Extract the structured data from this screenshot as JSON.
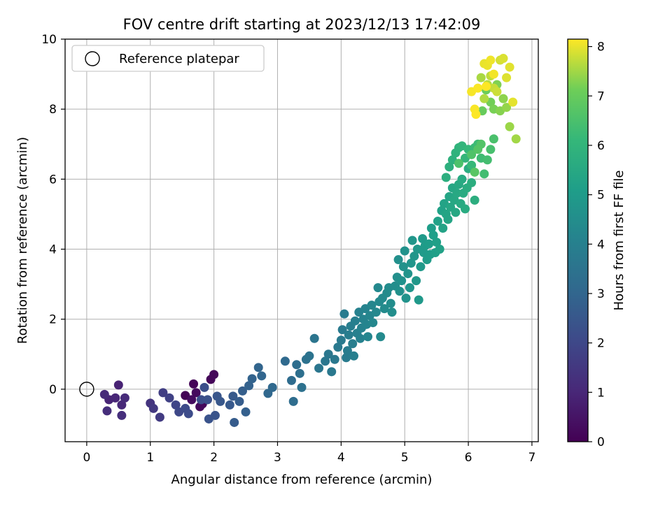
{
  "chart_data": {
    "type": "scatter",
    "title": "FOV centre drift starting at 2023/12/13 17:42:09",
    "xlabel": "Angular distance from reference (arcmin)",
    "ylabel": "Rotation from reference (arcmin)",
    "xlim": [
      -0.34,
      7.1
    ],
    "ylim": [
      -1.5,
      10
    ],
    "xticks": [
      "0",
      "1",
      "2",
      "3",
      "4",
      "5",
      "6",
      "7"
    ],
    "yticks": [
      "0",
      "2",
      "4",
      "6",
      "8",
      "10"
    ],
    "grid": true,
    "legend": {
      "placement": "top-left",
      "label": "Reference platepar"
    },
    "reference_point": {
      "x": 0,
      "y": 0
    },
    "colorbar": {
      "label": "Hours from first FF file",
      "min": 0,
      "max": 8.15,
      "ticks": [
        "0",
        "1",
        "2",
        "3",
        "4",
        "5",
        "6",
        "7",
        "8"
      ],
      "colormap": "viridis"
    },
    "points": [
      [
        1.55,
        -0.18,
        0.05
      ],
      [
        1.68,
        0.15,
        0.08
      ],
      [
        1.82,
        -0.42,
        0.12
      ],
      [
        1.95,
        0.28,
        0.15
      ],
      [
        2.0,
        0.42,
        0.18
      ],
      [
        1.78,
        -0.5,
        0.22
      ],
      [
        1.72,
        -0.1,
        0.25
      ],
      [
        1.65,
        -0.3,
        0.3
      ],
      [
        0.5,
        0.12,
        0.9
      ],
      [
        0.35,
        -0.3,
        0.95
      ],
      [
        0.45,
        -0.25,
        1.0
      ],
      [
        0.55,
        -0.45,
        1.05
      ],
      [
        0.28,
        -0.15,
        1.1
      ],
      [
        0.6,
        -0.25,
        1.15
      ],
      [
        0.32,
        -0.62,
        1.2
      ],
      [
        0.55,
        -0.75,
        1.25
      ],
      [
        1.0,
        -0.4,
        1.4
      ],
      [
        1.05,
        -0.55,
        1.5
      ],
      [
        1.15,
        -0.8,
        1.6
      ],
      [
        1.2,
        -0.1,
        1.7
      ],
      [
        1.3,
        -0.25,
        1.8
      ],
      [
        1.4,
        -0.45,
        1.9
      ],
      [
        1.45,
        -0.65,
        2.0
      ],
      [
        1.55,
        -0.55,
        2.1
      ],
      [
        1.6,
        -0.7,
        2.15
      ],
      [
        1.8,
        -0.3,
        2.2
      ],
      [
        1.85,
        0.05,
        2.25
      ],
      [
        1.9,
        -0.3,
        2.3
      ],
      [
        1.92,
        -0.85,
        2.35
      ],
      [
        2.02,
        -0.75,
        2.4
      ],
      [
        2.05,
        -0.2,
        2.45
      ],
      [
        2.1,
        -0.35,
        2.5
      ],
      [
        2.25,
        -0.45,
        2.55
      ],
      [
        2.3,
        -0.2,
        2.6
      ],
      [
        2.32,
        -0.95,
        2.65
      ],
      [
        2.4,
        -0.35,
        2.7
      ],
      [
        2.45,
        -0.05,
        2.75
      ],
      [
        2.5,
        -0.65,
        2.8
      ],
      [
        2.55,
        0.1,
        2.85
      ],
      [
        2.6,
        0.3,
        2.9
      ],
      [
        2.7,
        0.62,
        2.95
      ],
      [
        2.75,
        0.38,
        3.0
      ],
      [
        2.85,
        -0.12,
        3.05
      ],
      [
        2.92,
        0.05,
        3.1
      ],
      [
        3.12,
        0.8,
        3.15
      ],
      [
        3.22,
        0.25,
        3.2
      ],
      [
        3.25,
        -0.35,
        3.25
      ],
      [
        3.3,
        0.7,
        3.3
      ],
      [
        3.35,
        0.45,
        3.35
      ],
      [
        3.38,
        0.05,
        3.4
      ],
      [
        3.45,
        0.85,
        3.45
      ],
      [
        3.5,
        0.95,
        3.5
      ],
      [
        3.58,
        1.45,
        3.55
      ],
      [
        3.65,
        0.6,
        3.6
      ],
      [
        3.75,
        0.8,
        3.62
      ],
      [
        3.8,
        1.0,
        3.65
      ],
      [
        3.85,
        0.5,
        3.67
      ],
      [
        3.9,
        0.85,
        3.7
      ],
      [
        3.95,
        1.2,
        3.72
      ],
      [
        4.0,
        1.4,
        3.75
      ],
      [
        4.02,
        1.7,
        3.77
      ],
      [
        4.05,
        2.15,
        3.8
      ],
      [
        4.08,
        0.9,
        3.82
      ],
      [
        4.1,
        1.1,
        3.85
      ],
      [
        4.12,
        1.55,
        3.87
      ],
      [
        4.15,
        1.8,
        3.9
      ],
      [
        4.18,
        1.3,
        3.92
      ],
      [
        4.2,
        0.95,
        3.95
      ],
      [
        4.22,
        1.95,
        3.97
      ],
      [
        4.25,
        1.6,
        4.0
      ],
      [
        4.28,
        2.2,
        4.02
      ],
      [
        4.3,
        1.45,
        4.05
      ],
      [
        4.32,
        1.75,
        4.07
      ],
      [
        4.35,
        2.0,
        4.1
      ],
      [
        4.38,
        2.3,
        4.12
      ],
      [
        4.4,
        1.85,
        4.15
      ],
      [
        4.42,
        1.5,
        4.17
      ],
      [
        4.45,
        2.1,
        4.2
      ],
      [
        4.48,
        2.4,
        4.22
      ],
      [
        4.5,
        1.9,
        4.25
      ],
      [
        4.55,
        2.2,
        4.28
      ],
      [
        4.58,
        2.9,
        4.3
      ],
      [
        4.6,
        2.5,
        4.32
      ],
      [
        4.62,
        1.5,
        4.35
      ],
      [
        4.65,
        2.6,
        4.38
      ],
      [
        4.68,
        2.3,
        4.4
      ],
      [
        4.72,
        2.75,
        4.42
      ],
      [
        4.75,
        2.9,
        4.45
      ],
      [
        4.78,
        2.45,
        4.48
      ],
      [
        4.8,
        2.2,
        4.5
      ],
      [
        4.85,
        2.95,
        4.52
      ],
      [
        4.88,
        3.2,
        4.55
      ],
      [
        4.9,
        3.7,
        4.57
      ],
      [
        4.92,
        2.8,
        4.6
      ],
      [
        4.95,
        3.1,
        4.62
      ],
      [
        4.98,
        3.5,
        4.65
      ],
      [
        5.0,
        3.95,
        4.67
      ],
      [
        5.02,
        2.6,
        4.7
      ],
      [
        5.05,
        3.3,
        4.72
      ],
      [
        5.08,
        2.9,
        4.75
      ],
      [
        5.1,
        3.6,
        4.77
      ],
      [
        5.12,
        4.25,
        4.8
      ],
      [
        5.15,
        3.8,
        4.82
      ],
      [
        5.18,
        3.1,
        4.85
      ],
      [
        5.2,
        4.0,
        4.87
      ],
      [
        5.22,
        2.55,
        4.9
      ],
      [
        5.25,
        3.5,
        4.92
      ],
      [
        5.28,
        4.3,
        4.95
      ],
      [
        5.3,
        3.9,
        4.97
      ],
      [
        5.32,
        4.1,
        5.0
      ],
      [
        5.35,
        3.7,
        5.02
      ],
      [
        5.38,
        4.15,
        5.05
      ],
      [
        5.4,
        3.85,
        5.07
      ],
      [
        5.42,
        4.6,
        5.1
      ],
      [
        5.45,
        4.4,
        5.12
      ],
      [
        5.48,
        3.9,
        5.15
      ],
      [
        5.5,
        4.2,
        5.17
      ],
      [
        5.52,
        4.8,
        5.2
      ],
      [
        5.55,
        4.0,
        5.22
      ],
      [
        5.58,
        5.1,
        5.25
      ],
      [
        5.6,
        4.6,
        5.27
      ],
      [
        5.62,
        5.3,
        5.3
      ],
      [
        5.65,
        5.0,
        5.32
      ],
      [
        5.68,
        4.85,
        5.35
      ],
      [
        5.7,
        5.5,
        5.37
      ],
      [
        5.72,
        5.2,
        5.4
      ],
      [
        5.75,
        5.75,
        5.42
      ],
      [
        5.78,
        5.4,
        5.45
      ],
      [
        5.8,
        5.05,
        5.47
      ],
      [
        5.82,
        5.6,
        5.5
      ],
      [
        5.85,
        5.85,
        5.52
      ],
      [
        5.88,
        5.3,
        5.55
      ],
      [
        5.9,
        6.0,
        5.57
      ],
      [
        5.92,
        5.6,
        5.6
      ],
      [
        5.95,
        5.15,
        5.62
      ],
      [
        5.98,
        5.75,
        5.65
      ],
      [
        6.0,
        6.3,
        5.68
      ],
      [
        6.05,
        5.9,
        5.7
      ],
      [
        6.1,
        5.4,
        5.72
      ],
      [
        5.65,
        6.05,
        5.75
      ],
      [
        5.7,
        6.35,
        5.8
      ],
      [
        5.75,
        6.55,
        5.85
      ],
      [
        5.8,
        6.75,
        5.9
      ],
      [
        5.85,
        6.9,
        5.95
      ],
      [
        5.9,
        6.95,
        6.0
      ],
      [
        5.95,
        6.6,
        6.05
      ],
      [
        6.0,
        6.85,
        6.1
      ],
      [
        6.05,
        6.4,
        6.15
      ],
      [
        6.1,
        6.9,
        6.2
      ],
      [
        6.15,
        7.0,
        6.25
      ],
      [
        6.2,
        6.6,
        6.3
      ],
      [
        6.25,
        6.15,
        6.35
      ],
      [
        6.3,
        6.55,
        6.4
      ],
      [
        6.35,
        6.85,
        6.45
      ],
      [
        6.4,
        7.15,
        6.5
      ],
      [
        5.85,
        6.45,
        6.55
      ],
      [
        6.05,
        6.7,
        6.6
      ],
      [
        6.2,
        7.0,
        6.65
      ],
      [
        6.15,
        6.85,
        6.7
      ],
      [
        6.1,
        6.2,
        6.75
      ],
      [
        6.22,
        7.95,
        7.0
      ],
      [
        6.28,
        8.55,
        7.1
      ],
      [
        6.35,
        8.2,
        7.15
      ],
      [
        6.4,
        8.0,
        7.2
      ],
      [
        6.45,
        8.7,
        7.25
      ],
      [
        6.5,
        7.95,
        7.3
      ],
      [
        6.55,
        8.3,
        7.35
      ],
      [
        6.6,
        8.05,
        7.4
      ],
      [
        6.65,
        7.5,
        7.45
      ],
      [
        6.75,
        7.15,
        7.5
      ],
      [
        6.2,
        8.9,
        7.55
      ],
      [
        6.25,
        8.3,
        7.6
      ],
      [
        6.3,
        8.7,
        7.65
      ],
      [
        6.35,
        8.95,
        7.7
      ],
      [
        6.4,
        8.6,
        7.75
      ],
      [
        6.45,
        8.5,
        7.8
      ],
      [
        6.5,
        9.4,
        7.85
      ],
      [
        6.55,
        9.45,
        7.9
      ],
      [
        6.6,
        8.9,
        7.92
      ],
      [
        6.65,
        9.2,
        7.95
      ],
      [
        6.7,
        8.2,
        7.97
      ],
      [
        6.25,
        9.3,
        8.0
      ],
      [
        6.3,
        9.25,
        8.02
      ],
      [
        6.35,
        9.4,
        8.05
      ],
      [
        6.4,
        9.0,
        8.07
      ],
      [
        6.05,
        8.5,
        8.1
      ],
      [
        6.1,
        8.0,
        8.12
      ],
      [
        6.15,
        8.6,
        8.13
      ],
      [
        6.12,
        7.85,
        8.14
      ],
      [
        6.28,
        8.65,
        8.15
      ]
    ]
  }
}
